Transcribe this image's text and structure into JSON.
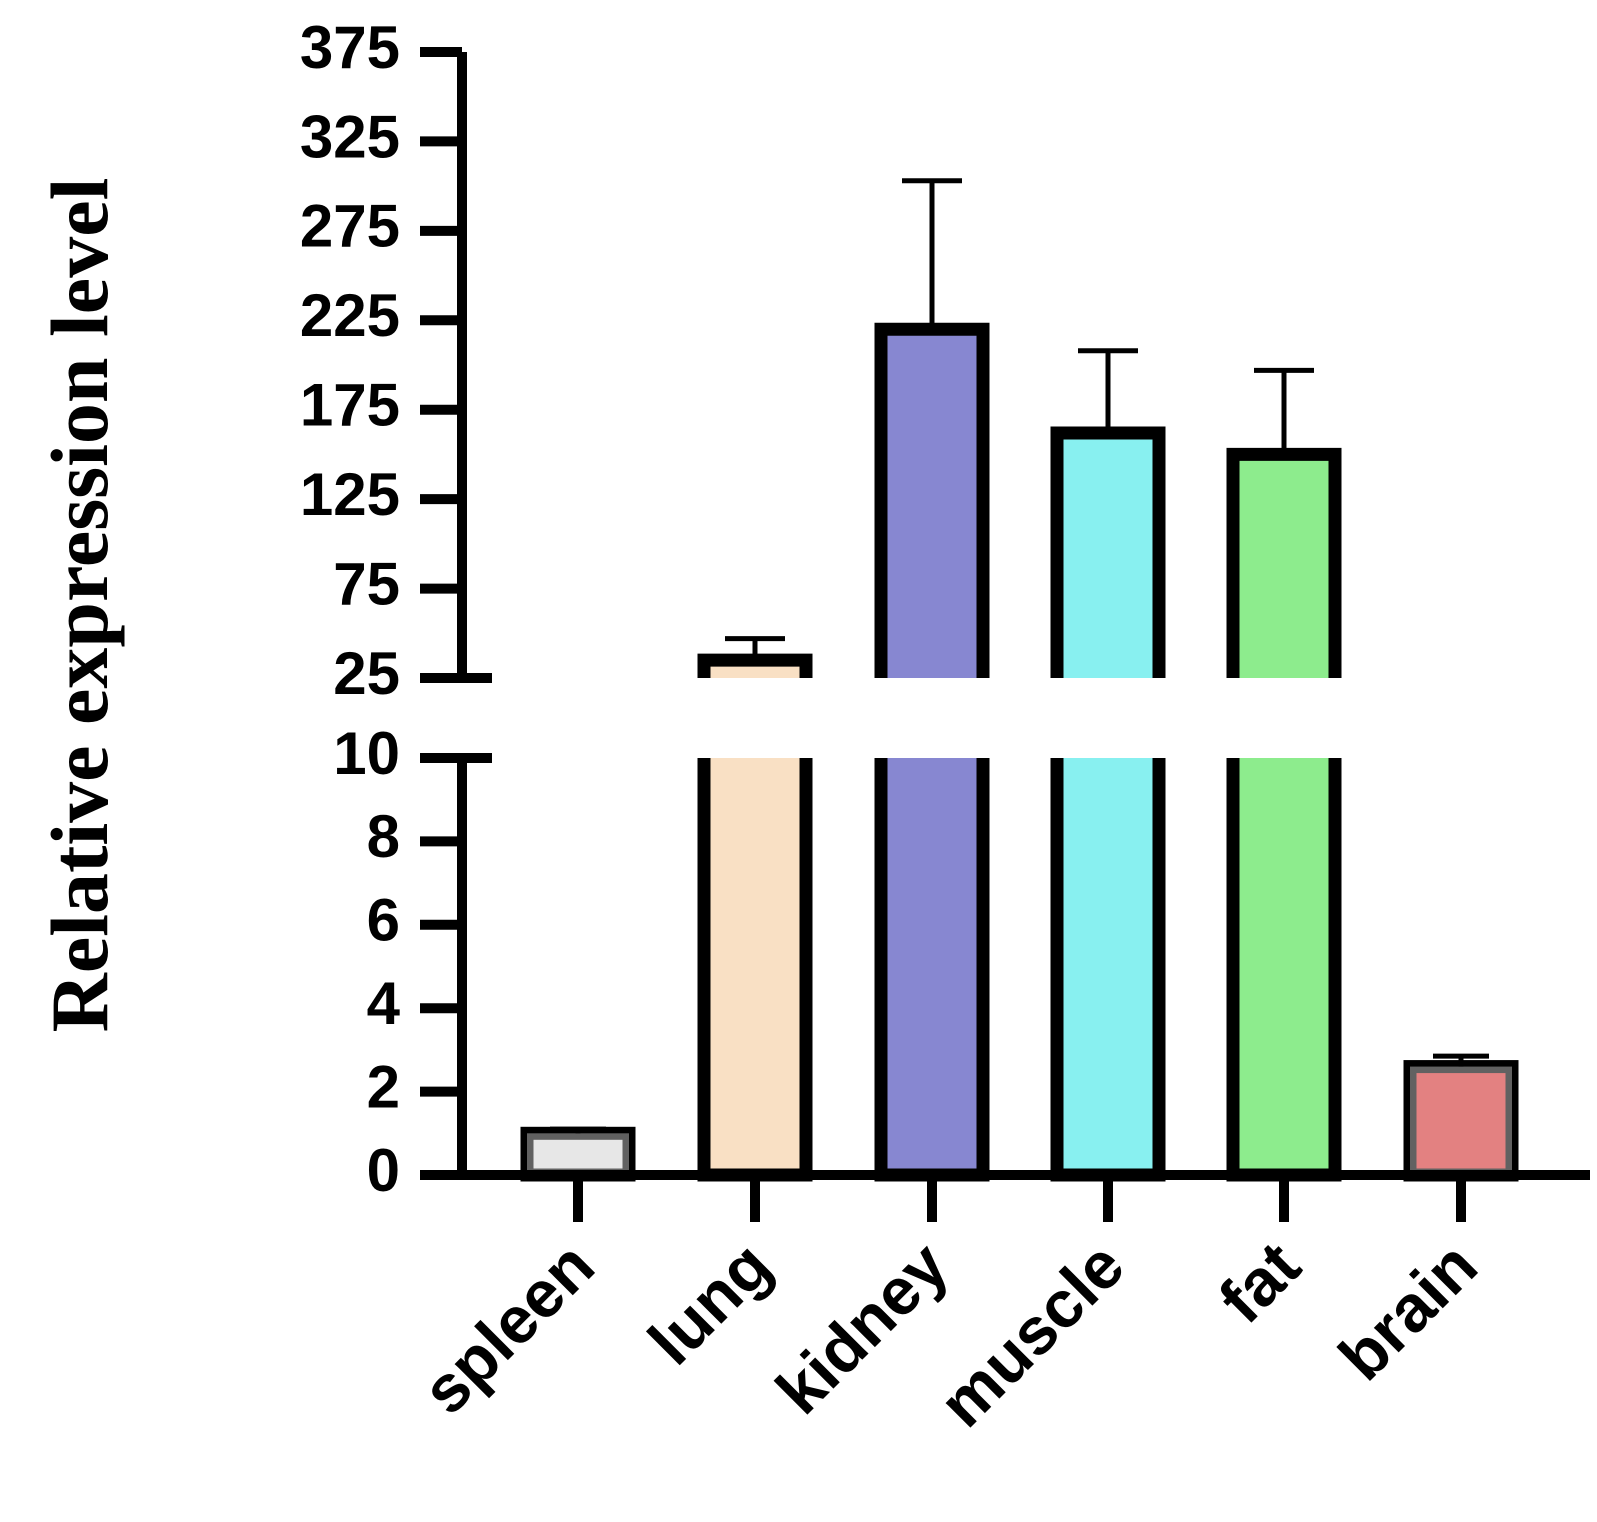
{
  "chart_data": {
    "type": "bar",
    "ylabel": "Relative expression level",
    "categories": [
      "spleen",
      "lung",
      "kidney",
      "muscle",
      "fat",
      "brain"
    ],
    "values": [
      1.0,
      35,
      220,
      162,
      150,
      2.6
    ],
    "errors": [
      0.1,
      12,
      83,
      46,
      47,
      0.25
    ],
    "colors": [
      "#d8d8d8",
      "#f6cda0",
      "#3e3eb4",
      "#3fe7e7",
      "#47e047",
      "#d23434"
    ],
    "y_axis_break": {
      "lower_segment": {
        "ylim": [
          0,
          10
        ],
        "ticks": [
          "0",
          "2",
          "4",
          "6",
          "8",
          "10"
        ]
      },
      "upper_segment": {
        "ylim": [
          25,
          375
        ],
        "ticks": [
          "25",
          "75",
          "125",
          "175",
          "225",
          "275",
          "325",
          "375"
        ]
      }
    },
    "grid": false,
    "legend": "none"
  }
}
